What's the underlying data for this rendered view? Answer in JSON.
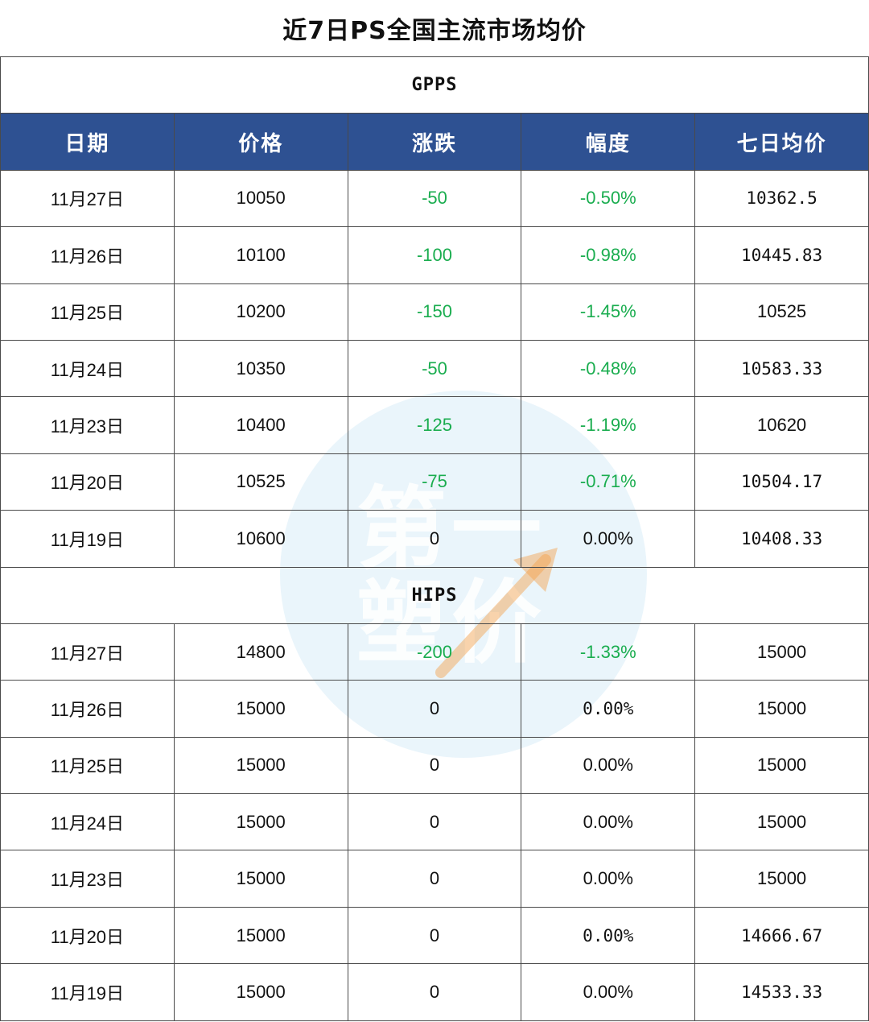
{
  "title": "近7日PS全国主流市场均价",
  "watermark": {
    "text_line1": "第一",
    "text_line2": "塑价"
  },
  "headers": [
    "日期",
    "价格",
    "涨跌",
    "幅度",
    "七日均价"
  ],
  "sections": [
    {
      "name": "GPPS",
      "rows": [
        {
          "date": "11月27日",
          "price": "10050",
          "change": "-50",
          "pct": "-0.50%",
          "avg": "10362.5",
          "neg": true
        },
        {
          "date": "11月26日",
          "price": "10100",
          "change": "-100",
          "pct": "-0.98%",
          "avg": "10445.83",
          "neg": true
        },
        {
          "date": "11月25日",
          "price": "10200",
          "change": "-150",
          "pct": "-1.45%",
          "avg": "10525",
          "neg": true
        },
        {
          "date": "11月24日",
          "price": "10350",
          "change": "-50",
          "pct": "-0.48%",
          "avg": "10583.33",
          "neg": true
        },
        {
          "date": "11月23日",
          "price": "10400",
          "change": "-125",
          "pct": "-1.19%",
          "avg": "10620",
          "neg": true
        },
        {
          "date": "11月20日",
          "price": "10525",
          "change": "-75",
          "pct": "-0.71%",
          "avg": "10504.17",
          "neg": true
        },
        {
          "date": "11月19日",
          "price": "10600",
          "change": "0",
          "pct": "0.00%",
          "avg": "10408.33",
          "neg": false
        }
      ]
    },
    {
      "name": "HIPS",
      "rows": [
        {
          "date": "11月27日",
          "price": "14800",
          "change": "-200",
          "pct": "-1.33%",
          "avg": "15000",
          "neg": true
        },
        {
          "date": "11月26日",
          "price": "15000",
          "change": "0",
          "pct": "0.00%",
          "avg": "15000",
          "neg": false,
          "mono": true
        },
        {
          "date": "11月25日",
          "price": "15000",
          "change": "0",
          "pct": "0.00%",
          "avg": "15000",
          "neg": false
        },
        {
          "date": "11月24日",
          "price": "15000",
          "change": "0",
          "pct": "0.00%",
          "avg": "15000",
          "neg": false
        },
        {
          "date": "11月23日",
          "price": "15000",
          "change": "0",
          "pct": "0.00%",
          "avg": "15000",
          "neg": false
        },
        {
          "date": "11月20日",
          "price": "15000",
          "change": "0",
          "pct": "0.00%",
          "avg": "14666.67",
          "neg": false,
          "mono": true
        },
        {
          "date": "11月19日",
          "price": "15000",
          "change": "0",
          "pct": "0.00%",
          "avg": "14533.33",
          "neg": false
        }
      ]
    }
  ],
  "colors": {
    "header_bg": "#2e5192",
    "negative": "#1aad4f",
    "watermark": "#d8ecf8",
    "arrow": "#f5a04a"
  }
}
